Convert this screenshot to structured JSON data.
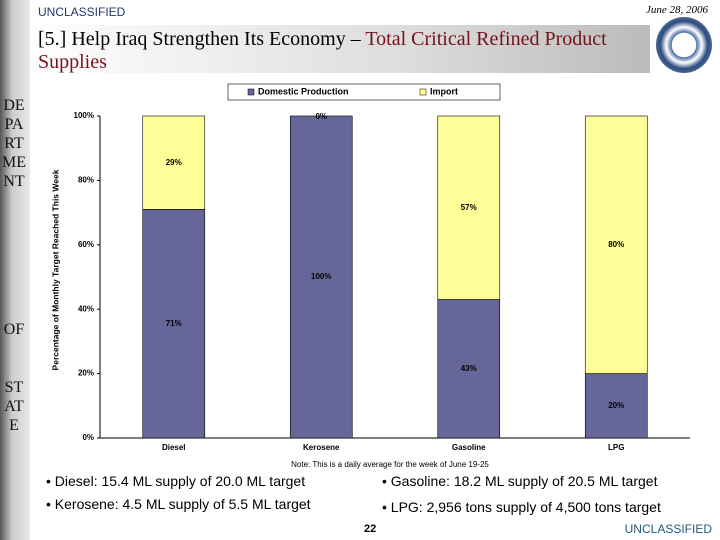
{
  "header": {
    "classification": "UNCLASSIFIED",
    "date": "June 28, 2006",
    "title_prefix": "[5.] Help Iraq Strengthen Its Economy – ",
    "title_highlight": "Total Critical Refined Product Supplies"
  },
  "sidebar": [
    "DEPARTMENT",
    "OF",
    "STATE"
  ],
  "chart_data": {
    "type": "stacked_bar",
    "y_label": "Percentage of Monthly Target Reached This Week",
    "categories": [
      "Diesel",
      "Kerosene",
      "Gasoline",
      "LPG"
    ],
    "series": [
      {
        "name": "Domestic Production",
        "color": "#666699",
        "values": [
          71,
          100,
          43,
          20
        ],
        "value_labels": [
          "71%",
          "100%",
          "43%",
          "20%"
        ]
      },
      {
        "name": "Import",
        "color": "#ffff99",
        "values": [
          29,
          0,
          57,
          80
        ],
        "value_labels": [
          "29%",
          "0%",
          "57%",
          "80%"
        ]
      }
    ],
    "ylim": [
      0,
      100
    ],
    "yticks": [
      {
        "value": 0,
        "label": "0%"
      },
      {
        "value": 20,
        "label": "20%"
      },
      {
        "value": 40,
        "label": "40%"
      },
      {
        "value": 60,
        "label": "60%"
      },
      {
        "value": 80,
        "label": "80%"
      },
      {
        "value": 100,
        "label": "100%"
      }
    ],
    "legend": "top",
    "note": "Note: This is a daily average for the week of June 19-25"
  },
  "bullets": [
    "• Diesel: 15.4 ML supply of 20.0 ML target",
    "• Gasoline: 18.2 ML supply of 20.5 ML target",
    "• Kerosene: 4.5 ML supply of 5.5 ML target",
    "• LPG: 2,956 tons supply of 4,500 tons target"
  ],
  "footer": {
    "page": "22",
    "classification": "UNCLASSIFIED"
  }
}
